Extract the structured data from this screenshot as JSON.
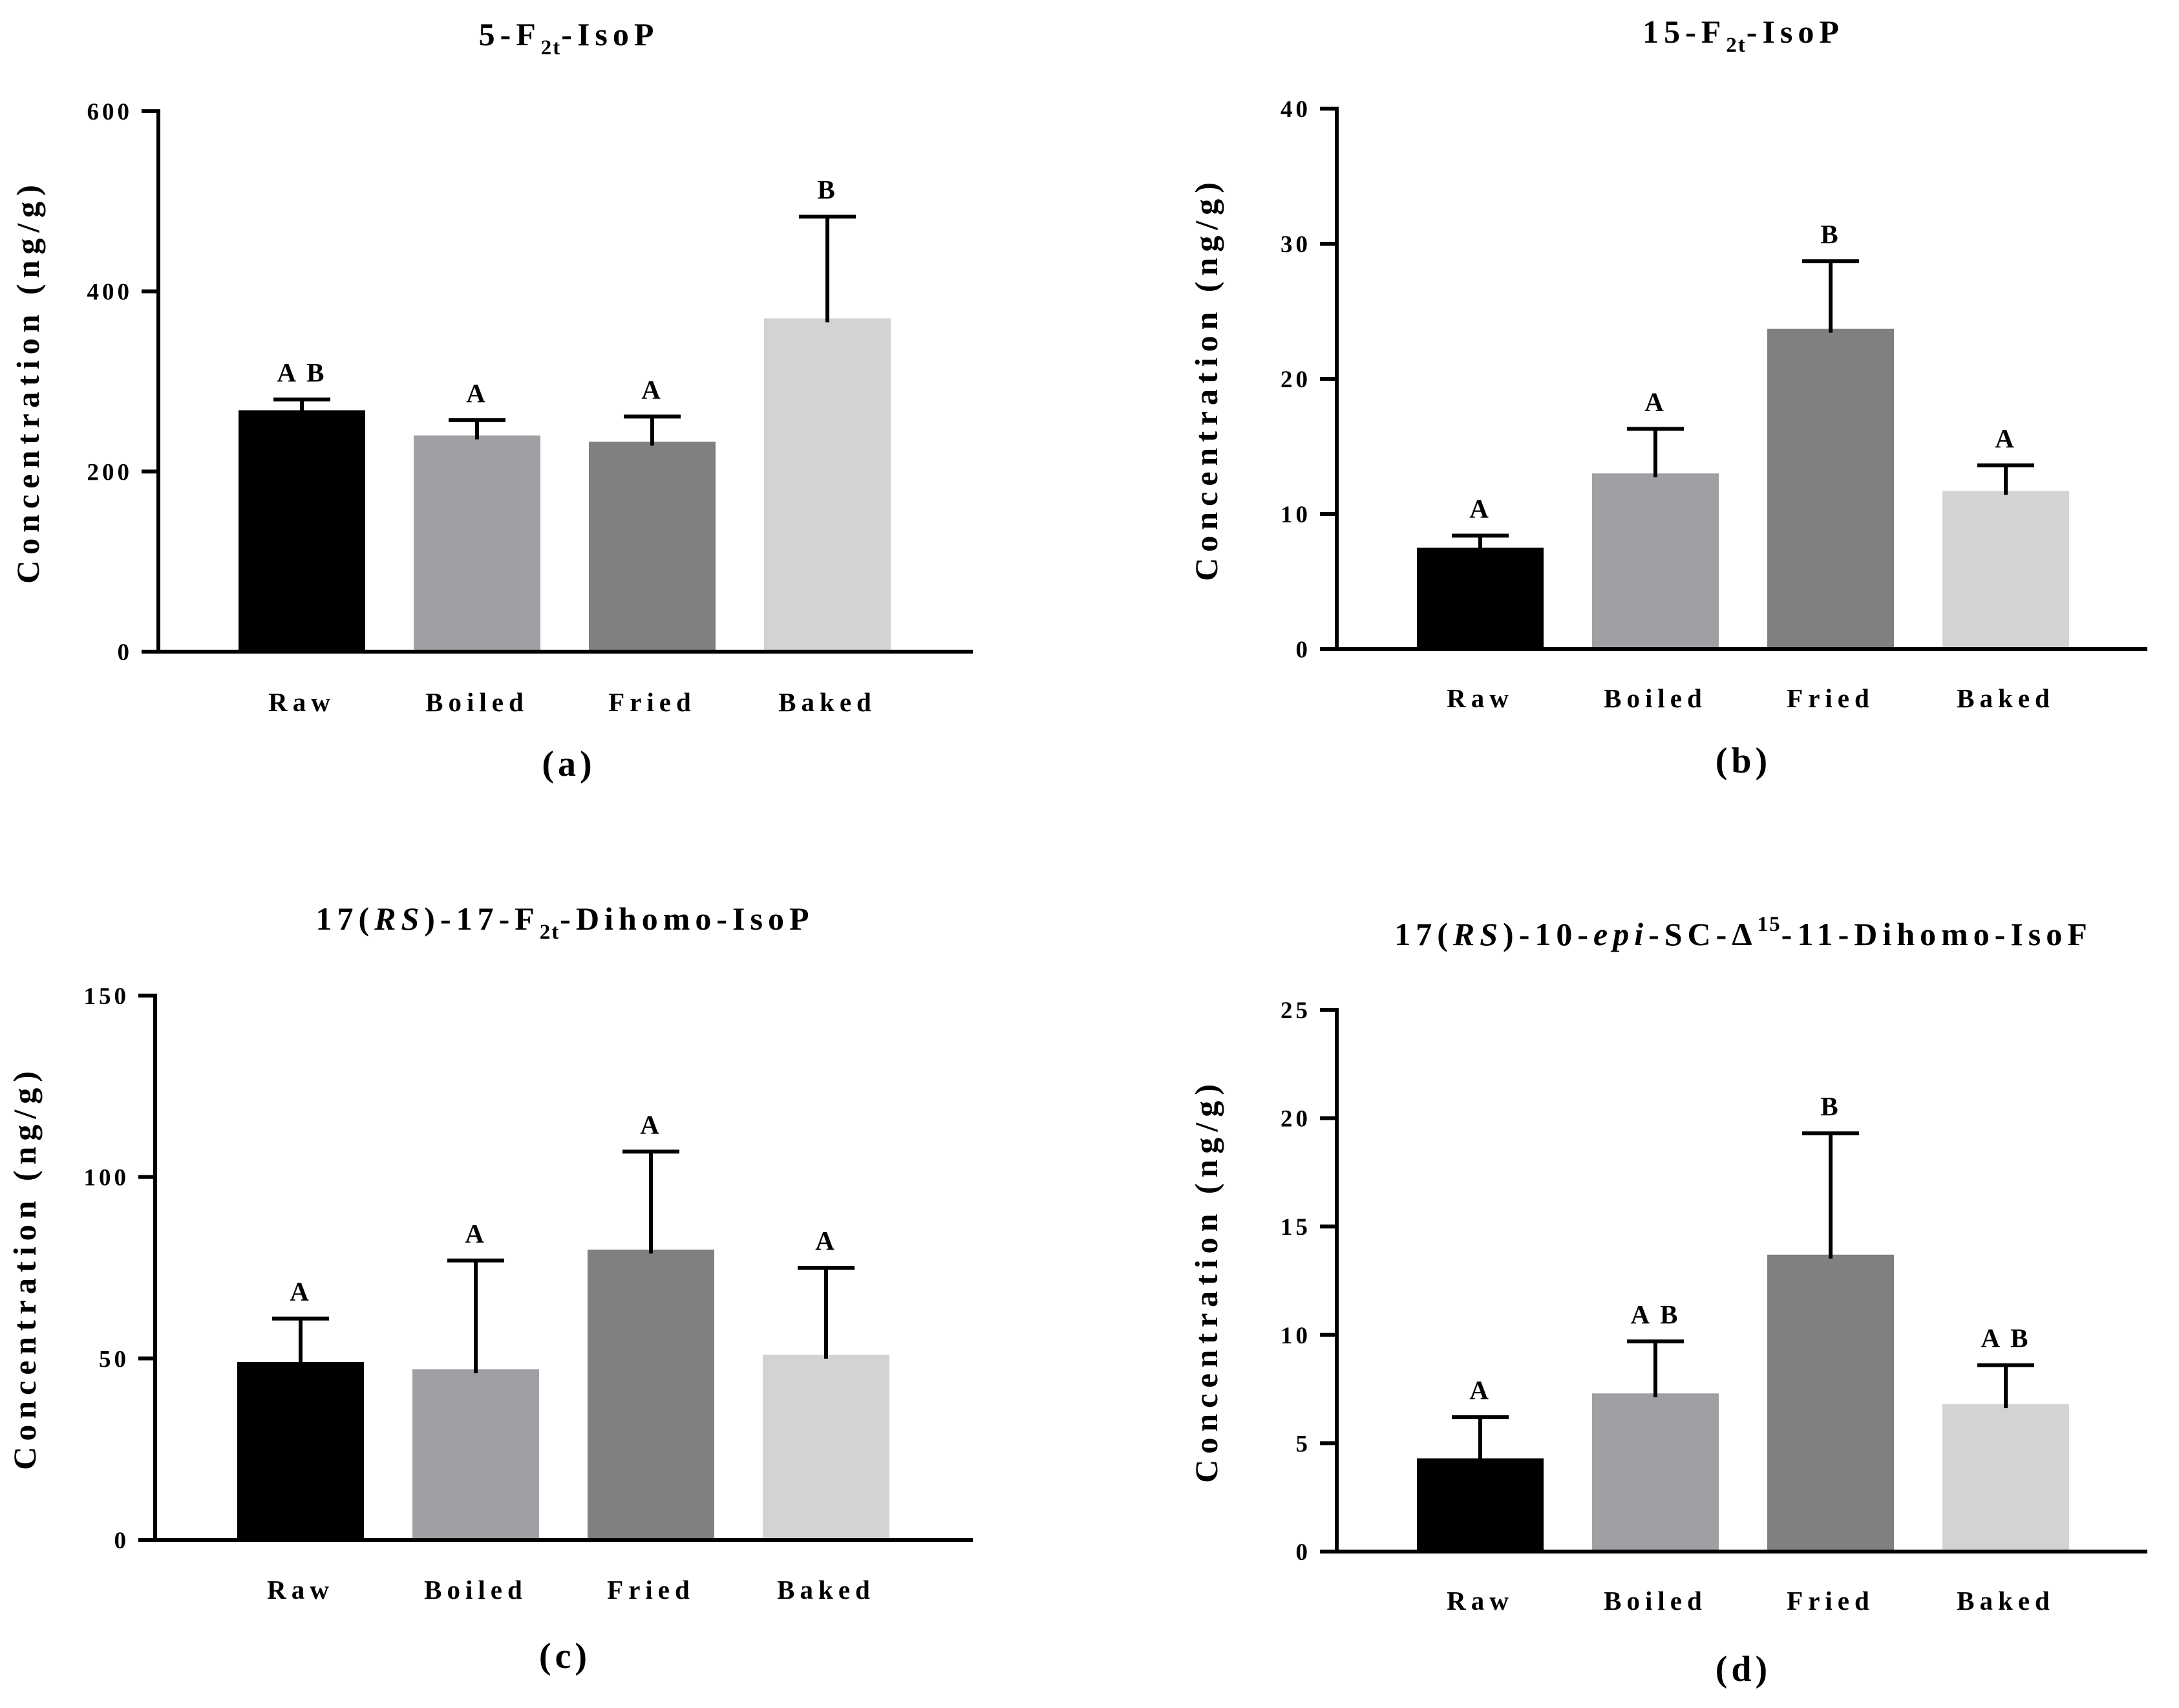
{
  "figure": {
    "description_hidden": false
  },
  "chart_data": [
    {
      "type": "bar",
      "panel_label": "(a)",
      "title_parts": [
        {
          "t": "5-F"
        },
        {
          "t": "2t",
          "style": "sub"
        },
        {
          "t": "-IsoP"
        }
      ],
      "ylabel": "Concentration (ng/g)",
      "xlabel": "",
      "ylim": [
        0,
        600
      ],
      "yticks": [
        0,
        200,
        400,
        600
      ],
      "categories": [
        "Raw",
        "Boiled",
        "Fried",
        "Baked"
      ],
      "values": [
        268,
        240,
        233,
        370
      ],
      "errors": [
        12,
        17,
        28,
        113
      ],
      "significance": [
        "A B",
        "A",
        "A",
        "B"
      ],
      "colors": [
        "#000000",
        "#a0a0a4",
        "#808080",
        "#d3d3d3"
      ]
    },
    {
      "type": "bar",
      "panel_label": "(b)",
      "title_parts": [
        {
          "t": "15-F"
        },
        {
          "t": "2t",
          "style": "sub"
        },
        {
          "t": "-IsoP"
        }
      ],
      "ylabel": "Concentration (ng/g)",
      "xlabel": "",
      "ylim": [
        0,
        40
      ],
      "yticks": [
        0,
        10,
        20,
        30,
        40
      ],
      "categories": [
        "Raw",
        "Boiled",
        "Fried",
        "Baked"
      ],
      "values": [
        7.5,
        13.0,
        23.7,
        11.7
      ],
      "errors": [
        0.9,
        3.3,
        5.0,
        1.9
      ],
      "significance": [
        "A",
        "A",
        "B",
        "A"
      ],
      "colors": [
        "#000000",
        "#a0a0a4",
        "#808080",
        "#d3d3d3"
      ]
    },
    {
      "type": "bar",
      "panel_label": "(c)",
      "title_parts": [
        {
          "t": "17("
        },
        {
          "t": "RS",
          "style": "italic"
        },
        {
          "t": ")-17-F"
        },
        {
          "t": "2t",
          "style": "sub"
        },
        {
          "t": "-Dihomo-IsoP"
        }
      ],
      "ylabel": "Concentration (ng/g)",
      "xlabel": "",
      "ylim": [
        0,
        150
      ],
      "yticks": [
        0,
        50,
        100,
        150
      ],
      "categories": [
        "Raw",
        "Boiled",
        "Fried",
        "Baked"
      ],
      "values": [
        49,
        47,
        80,
        51
      ],
      "errors": [
        12,
        30,
        27,
        24
      ],
      "significance": [
        "A",
        "A",
        "A",
        "A"
      ],
      "colors": [
        "#000000",
        "#a0a0a4",
        "#808080",
        "#d3d3d3"
      ]
    },
    {
      "type": "bar",
      "panel_label": "(d)",
      "title_parts": [
        {
          "t": "17("
        },
        {
          "t": "RS",
          "style": "italic"
        },
        {
          "t": ")-10-"
        },
        {
          "t": "epi",
          "style": "italic"
        },
        {
          "t": "-SC-Δ"
        },
        {
          "t": "15",
          "style": "sup"
        },
        {
          "t": "-11-Dihomo-IsoF"
        }
      ],
      "ylabel": "Concentration (ng/g)",
      "xlabel": "",
      "ylim": [
        0,
        25
      ],
      "yticks": [
        0,
        5,
        10,
        15,
        20,
        25
      ],
      "categories": [
        "Raw",
        "Boiled",
        "Fried",
        "Baked"
      ],
      "values": [
        4.3,
        7.3,
        13.7,
        6.8
      ],
      "errors": [
        1.9,
        2.4,
        5.6,
        1.8
      ],
      "significance": [
        "A",
        "A B",
        "B",
        "A B"
      ],
      "colors": [
        "#000000",
        "#a0a0a4",
        "#808080",
        "#d3d3d3"
      ]
    }
  ]
}
